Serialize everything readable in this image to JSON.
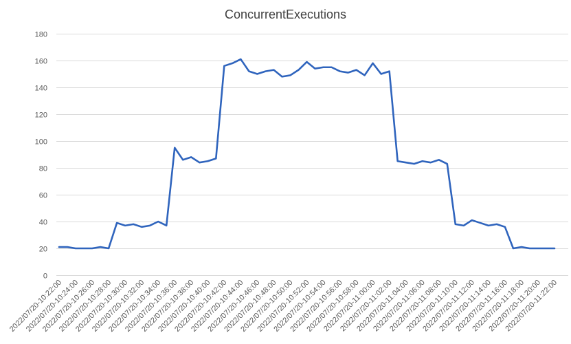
{
  "chart_data": {
    "type": "line",
    "title": "ConcurrentExecutions",
    "xlabel": "",
    "ylabel": "",
    "ylim": [
      0,
      180
    ],
    "yticks": [
      0,
      20,
      40,
      60,
      80,
      100,
      120,
      140,
      160,
      180
    ],
    "grid": true,
    "legend": "none",
    "x": [
      "2022/07/20-10:22:00",
      "2022/07/20-10:23:00",
      "2022/07/20-10:24:00",
      "2022/07/20-10:25:00",
      "2022/07/20-10:26:00",
      "2022/07/20-10:27:00",
      "2022/07/20-10:28:00",
      "2022/07/20-10:29:00",
      "2022/07/20-10:30:00",
      "2022/07/20-10:31:00",
      "2022/07/20-10:32:00",
      "2022/07/20-10:33:00",
      "2022/07/20-10:34:00",
      "2022/07/20-10:35:00",
      "2022/07/20-10:36:00",
      "2022/07/20-10:37:00",
      "2022/07/20-10:38:00",
      "2022/07/20-10:39:00",
      "2022/07/20-10:40:00",
      "2022/07/20-10:41:00",
      "2022/07/20-10:42:00",
      "2022/07/20-10:43:00",
      "2022/07/20-10:44:00",
      "2022/07/20-10:45:00",
      "2022/07/20-10:46:00",
      "2022/07/20-10:47:00",
      "2022/07/20-10:48:00",
      "2022/07/20-10:49:00",
      "2022/07/20-10:50:00",
      "2022/07/20-10:51:00",
      "2022/07/20-10:52:00",
      "2022/07/20-10:53:00",
      "2022/07/20-10:54:00",
      "2022/07/20-10:55:00",
      "2022/07/20-10:56:00",
      "2022/07/20-10:57:00",
      "2022/07/20-10:58:00",
      "2022/07/20-10:59:00",
      "2022/07/20-11:00:00",
      "2022/07/20-11:01:00",
      "2022/07/20-11:02:00",
      "2022/07/20-11:03:00",
      "2022/07/20-11:04:00",
      "2022/07/20-11:05:00",
      "2022/07/20-11:06:00",
      "2022/07/20-11:07:00",
      "2022/07/20-11:08:00",
      "2022/07/20-11:09:00",
      "2022/07/20-11:10:00",
      "2022/07/20-11:11:00",
      "2022/07/20-11:12:00",
      "2022/07/20-11:13:00",
      "2022/07/20-11:14:00",
      "2022/07/20-11:15:00",
      "2022/07/20-11:16:00",
      "2022/07/20-11:17:00",
      "2022/07/20-11:18:00",
      "2022/07/20-11:19:00",
      "2022/07/20-11:20:00",
      "2022/07/20-11:21:00",
      "2022/07/20-11:22:00"
    ],
    "xtick_labels": [
      "2022/07/20-10:22:00",
      "2022/07/20-10:24:00",
      "2022/07/20-10:26:00",
      "2022/07/20-10:28:00",
      "2022/07/20-10:30:00",
      "2022/07/20-10:32:00",
      "2022/07/20-10:34:00",
      "2022/07/20-10:36:00",
      "2022/07/20-10:38:00",
      "2022/07/20-10:40:00",
      "2022/07/20-10:42:00",
      "2022/07/20-10:44:00",
      "2022/07/20-10:46:00",
      "2022/07/20-10:48:00",
      "2022/07/20-10:50:00",
      "2022/07/20-10:52:00",
      "2022/07/20-10:54:00",
      "2022/07/20-10:56:00",
      "2022/07/20-10:58:00",
      "2022/07/20-11:00:00",
      "2022/07/20-11:02:00",
      "2022/07/20-11:04:00",
      "2022/07/20-11:06:00",
      "2022/07/20-11:08:00",
      "2022/07/20-11:10:00",
      "2022/07/20-11:12:00",
      "2022/07/20-11:14:00",
      "2022/07/20-11:16:00",
      "2022/07/20-11:18:00",
      "2022/07/20-11:20:00",
      "2022/07/20-11:22:00"
    ],
    "series": [
      {
        "color": "#2f64bd",
        "values": [
          21,
          21,
          20,
          20,
          20,
          21,
          20,
          39,
          37,
          38,
          36,
          37,
          40,
          37,
          95,
          86,
          88,
          84,
          85,
          87,
          156,
          158,
          161,
          152,
          150,
          152,
          153,
          148,
          149,
          153,
          159,
          154,
          155,
          155,
          152,
          151,
          153,
          149,
          158,
          150,
          152,
          85,
          84,
          83,
          85,
          84,
          86,
          83,
          38,
          37,
          41,
          39,
          37,
          38,
          36,
          20,
          21,
          20,
          20,
          20,
          20
        ]
      }
    ]
  }
}
